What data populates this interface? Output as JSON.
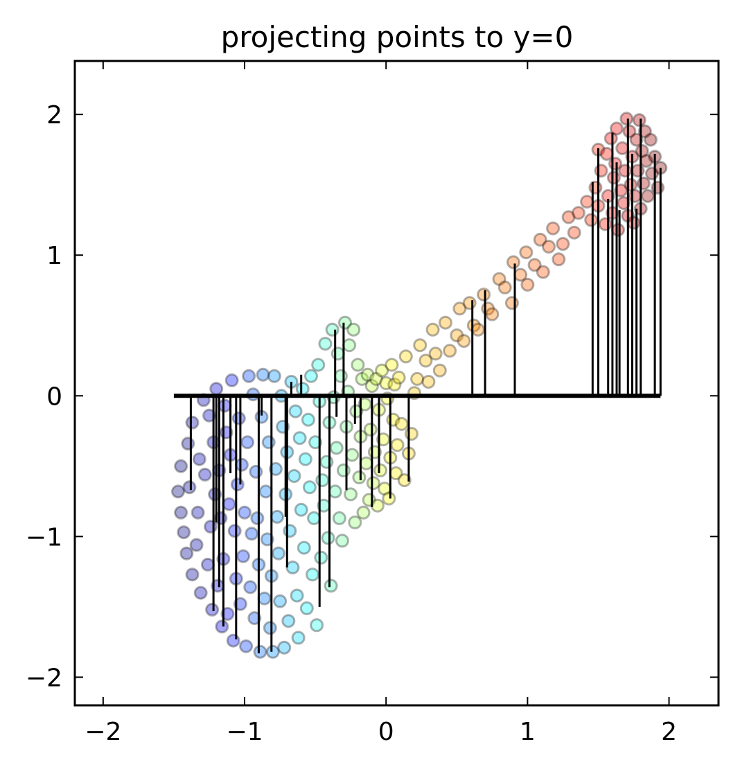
{
  "chart_data": {
    "type": "scatter",
    "title": "projecting points to y=0",
    "xlabel": "",
    "ylabel": "",
    "xlim": [
      -2.2,
      2.35
    ],
    "ylim": [
      -2.2,
      2.38
    ],
    "xticks": [
      -2,
      -1,
      0,
      1,
      2
    ],
    "yticks": [
      -2,
      -1,
      0,
      1,
      2
    ],
    "xtick_labels": [
      "−2",
      "−1",
      "0",
      "1",
      "2"
    ],
    "ytick_labels": [
      "−2",
      "−1",
      "0",
      "1",
      "2"
    ],
    "grid": false,
    "colormap": "jet (red at low t, blue at high t), alpha 0.35",
    "projection_line": {
      "y": 0,
      "x_range": [
        -1.5,
        1.94
      ],
      "color": "#000000"
    },
    "points": [
      [
        -1.47,
        -0.68
      ],
      [
        -1.45,
        -0.83
      ],
      [
        -1.45,
        -0.5
      ],
      [
        -1.43,
        -0.97
      ],
      [
        -1.41,
        -1.12
      ],
      [
        -1.4,
        -0.34
      ],
      [
        -1.39,
        -0.65
      ],
      [
        -1.37,
        -1.27
      ],
      [
        -1.37,
        -0.19
      ],
      [
        -1.34,
        -1.06
      ],
      [
        -1.33,
        -0.83
      ],
      [
        -1.32,
        -0.45
      ],
      [
        -1.31,
        -1.4
      ],
      [
        -1.29,
        -0.03
      ],
      [
        -1.28,
        -0.56
      ],
      [
        -1.26,
        -1.2
      ],
      [
        -1.25,
        -0.14
      ],
      [
        -1.24,
        -0.93
      ],
      [
        -1.23,
        -1.52
      ],
      [
        -1.22,
        -0.33
      ],
      [
        -1.21,
        -0.7
      ],
      [
        -1.2,
        0.05
      ],
      [
        -1.19,
        -1.35
      ],
      [
        -1.18,
        -0.53
      ],
      [
        -1.17,
        -0.87
      ],
      [
        -1.16,
        -1.64
      ],
      [
        -1.15,
        -1.16
      ],
      [
        -1.14,
        -0.07
      ],
      [
        -1.13,
        -0.26
      ],
      [
        -1.12,
        -1.55
      ],
      [
        -1.11,
        -0.77
      ],
      [
        -1.1,
        -0.42
      ],
      [
        -1.09,
        0.11
      ],
      [
        -1.08,
        -1.74
      ],
      [
        -1.07,
        -0.96
      ],
      [
        -1.06,
        -1.3
      ],
      [
        -1.05,
        -0.63
      ],
      [
        -1.04,
        -0.16
      ],
      [
        -1.03,
        -1.48
      ],
      [
        -1.02,
        -0.49
      ],
      [
        -1.01,
        -1.14
      ],
      [
        -1.0,
        -0.83
      ],
      [
        -0.99,
        -1.78
      ],
      [
        -0.98,
        -0.33
      ],
      [
        -0.97,
        0.14
      ],
      [
        -0.96,
        -1.36
      ],
      [
        -0.95,
        -0.98
      ],
      [
        -0.94,
        0.01
      ],
      [
        -0.93,
        -1.58
      ],
      [
        -0.92,
        -0.54
      ],
      [
        -0.91,
        -0.87
      ],
      [
        -0.9,
        -1.2
      ],
      [
        -0.89,
        -1.82
      ],
      [
        -0.88,
        -0.15
      ],
      [
        -0.87,
        0.15
      ],
      [
        -0.86,
        -1.44
      ],
      [
        -0.85,
        -0.68
      ],
      [
        -0.84,
        -1.02
      ],
      [
        -0.83,
        -0.33
      ],
      [
        -0.82,
        -1.65
      ],
      [
        -0.81,
        -1.28
      ],
      [
        -0.8,
        -1.82
      ],
      [
        -0.79,
        0.14
      ],
      [
        -0.78,
        -0.52
      ],
      [
        -0.77,
        -0.86
      ],
      [
        -0.76,
        -1.12
      ],
      [
        -0.75,
        -1.46
      ],
      [
        -0.74,
        0.0
      ],
      [
        -0.73,
        -0.22
      ],
      [
        -0.72,
        -1.79
      ],
      [
        -0.71,
        -0.7
      ],
      [
        -0.7,
        -0.4
      ],
      [
        -0.69,
        -1.6
      ],
      [
        -0.68,
        -0.96
      ],
      [
        -0.67,
        0.1
      ],
      [
        -0.66,
        -1.22
      ],
      [
        -0.65,
        -0.57
      ],
      [
        -0.64,
        -0.11
      ],
      [
        -0.63,
        -1.42
      ],
      [
        -0.62,
        -1.72
      ],
      [
        -0.61,
        -0.3
      ],
      [
        -0.6,
        -0.81
      ],
      [
        -0.59,
        0.05
      ],
      [
        -0.58,
        -1.08
      ],
      [
        -0.57,
        -0.45
      ],
      [
        -0.56,
        -1.51
      ],
      [
        -0.55,
        -0.17
      ],
      [
        -0.54,
        -0.65
      ],
      [
        -0.53,
        0.14
      ],
      [
        -0.52,
        -1.27
      ],
      [
        -0.51,
        -0.87
      ],
      [
        -0.5,
        -0.33
      ],
      [
        -0.49,
        -1.63
      ],
      [
        -0.48,
        0.22
      ],
      [
        -0.47,
        -0.04
      ],
      [
        -0.46,
        -1.15
      ],
      [
        -0.45,
        -0.6
      ],
      [
        -0.44,
        -0.78
      ],
      [
        -0.43,
        0.37
      ],
      [
        -0.42,
        -0.47
      ],
      [
        -0.41,
        -1.01
      ],
      [
        -0.4,
        -0.19
      ],
      [
        -0.39,
        -1.35
      ],
      [
        -0.38,
        0.47
      ],
      [
        -0.37,
        -0.01
      ],
      [
        -0.36,
        -0.68
      ],
      [
        -0.35,
        -0.37
      ],
      [
        -0.34,
        0.3
      ],
      [
        -0.33,
        -0.87
      ],
      [
        -0.32,
        0.14
      ],
      [
        -0.31,
        -1.03
      ],
      [
        -0.3,
        -0.53
      ],
      [
        -0.29,
        0.52
      ],
      [
        -0.28,
        -0.22
      ],
      [
        -0.27,
        0.03
      ],
      [
        -0.26,
        0.36
      ],
      [
        -0.25,
        -0.7
      ],
      [
        -0.24,
        -0.42
      ],
      [
        -0.23,
        0.47
      ],
      [
        -0.22,
        -0.9
      ],
      [
        -0.21,
        -0.11
      ],
      [
        -0.2,
        0.22
      ],
      [
        -0.19,
        -0.58
      ],
      [
        -0.18,
        -0.29
      ],
      [
        -0.17,
        0.12
      ],
      [
        -0.16,
        -0.83
      ],
      [
        -0.15,
        -0.06
      ],
      [
        -0.14,
        -0.48
      ],
      [
        -0.13,
        0.15
      ],
      [
        -0.12,
        -0.74
      ],
      [
        -0.11,
        -0.24
      ],
      [
        -0.1,
        0.07
      ],
      [
        -0.09,
        -0.62
      ],
      [
        -0.08,
        -0.4
      ],
      [
        -0.07,
        0.12
      ],
      [
        -0.06,
        -0.78
      ],
      [
        -0.05,
        -0.1
      ],
      [
        -0.04,
        -0.53
      ],
      [
        -0.03,
        0.18
      ],
      [
        -0.02,
        -0.31
      ],
      [
        -0.01,
        -0.66
      ],
      [
        0.0,
        0.09
      ],
      [
        0.01,
        -0.02
      ],
      [
        0.02,
        -0.73
      ],
      [
        0.03,
        -0.44
      ],
      [
        0.04,
        0.22
      ],
      [
        0.05,
        -0.17
      ],
      [
        0.06,
        0.08
      ],
      [
        0.07,
        -0.55
      ],
      [
        0.08,
        -0.35
      ],
      [
        0.09,
        0.13
      ],
      [
        0.11,
        -0.2
      ],
      [
        0.13,
        -0.6
      ],
      [
        0.14,
        0.28
      ],
      [
        0.16,
        -0.41
      ],
      [
        0.18,
        -0.27
      ],
      [
        0.2,
        0.02
      ],
      [
        0.22,
        0.12
      ],
      [
        0.24,
        0.36
      ],
      [
        0.28,
        0.25
      ],
      [
        0.3,
        0.1
      ],
      [
        0.33,
        0.47
      ],
      [
        0.35,
        0.3
      ],
      [
        0.38,
        0.18
      ],
      [
        0.42,
        0.52
      ],
      [
        0.45,
        0.32
      ],
      [
        0.5,
        0.43
      ],
      [
        0.52,
        0.62
      ],
      [
        0.55,
        0.39
      ],
      [
        0.59,
        0.66
      ],
      [
        0.62,
        0.5
      ],
      [
        0.65,
        0.47
      ],
      [
        0.69,
        0.72
      ],
      [
        0.72,
        0.62
      ],
      [
        0.75,
        0.58
      ],
      [
        0.8,
        0.83
      ],
      [
        0.84,
        0.77
      ],
      [
        0.89,
        0.66
      ],
      [
        0.9,
        0.95
      ],
      [
        0.95,
        0.86
      ],
      [
        0.99,
        1.02
      ],
      [
        1.0,
        0.79
      ],
      [
        1.05,
        0.93
      ],
      [
        1.09,
        1.11
      ],
      [
        1.11,
        0.88
      ],
      [
        1.15,
        1.06
      ],
      [
        1.18,
        1.19
      ],
      [
        1.22,
        0.97
      ],
      [
        1.25,
        1.08
      ],
      [
        1.29,
        1.27
      ],
      [
        1.33,
        1.16
      ],
      [
        1.36,
        1.3
      ],
      [
        1.42,
        1.38
      ],
      [
        1.45,
        1.25
      ],
      [
        1.48,
        1.48
      ],
      [
        1.5,
        1.75
      ],
      [
        1.5,
        1.35
      ],
      [
        1.52,
        1.6
      ],
      [
        1.55,
        1.22
      ],
      [
        1.56,
        1.72
      ],
      [
        1.57,
        1.42
      ],
      [
        1.59,
        1.83
      ],
      [
        1.6,
        1.3
      ],
      [
        1.61,
        1.55
      ],
      [
        1.62,
        1.65
      ],
      [
        1.63,
        1.9
      ],
      [
        1.64,
        1.18
      ],
      [
        1.66,
        1.46
      ],
      [
        1.67,
        1.76
      ],
      [
        1.68,
        1.37
      ],
      [
        1.69,
        1.6
      ],
      [
        1.7,
        1.97
      ],
      [
        1.71,
        1.28
      ],
      [
        1.72,
        1.88
      ],
      [
        1.73,
        1.5
      ],
      [
        1.74,
        1.7
      ],
      [
        1.75,
        1.23
      ],
      [
        1.76,
        1.42
      ],
      [
        1.77,
        1.82
      ],
      [
        1.78,
        1.6
      ],
      [
        1.79,
        1.96
      ],
      [
        1.8,
        1.33
      ],
      [
        1.81,
        1.74
      ],
      [
        1.82,
        1.51
      ],
      [
        1.83,
        1.88
      ],
      [
        1.84,
        1.67
      ],
      [
        1.85,
        1.42
      ],
      [
        1.87,
        1.82
      ],
      [
        1.88,
        1.58
      ],
      [
        1.9,
        1.7
      ],
      [
        1.92,
        1.48
      ],
      [
        1.94,
        1.62
      ]
    ],
    "projected": [
      [
        -1.38,
        -0.67
      ],
      [
        -1.22,
        -1.53
      ],
      [
        -1.2,
        -0.9
      ],
      [
        -1.18,
        -1.36
      ],
      [
        -1.15,
        -1.64
      ],
      [
        -1.1,
        -0.55
      ],
      [
        -1.06,
        -1.73
      ],
      [
        -1.03,
        -0.63
      ],
      [
        -0.9,
        -1.83
      ],
      [
        -0.88,
        -0.14
      ],
      [
        -0.81,
        -1.82
      ],
      [
        -0.71,
        -0.86
      ],
      [
        -0.7,
        -1.22
      ],
      [
        -0.67,
        0.1
      ],
      [
        -0.6,
        0.15
      ],
      [
        -0.47,
        -1.5
      ],
      [
        -0.4,
        -1.36
      ],
      [
        -0.35,
        -0.15
      ],
      [
        -0.36,
        0.47
      ],
      [
        -0.3,
        0.52
      ],
      [
        -0.28,
        -0.67
      ],
      [
        -0.22,
        -0.2
      ],
      [
        -0.18,
        -0.6
      ],
      [
        -0.1,
        -0.79
      ],
      [
        -0.05,
        -0.55
      ],
      [
        0.03,
        -0.73
      ],
      [
        0.16,
        -0.61
      ],
      [
        0.61,
        0.68
      ],
      [
        0.7,
        0.75
      ],
      [
        0.91,
        0.94
      ],
      [
        1.46,
        1.52
      ],
      [
        1.5,
        1.76
      ],
      [
        1.57,
        1.4
      ],
      [
        1.6,
        1.87
      ],
      [
        1.63,
        1.66
      ],
      [
        1.65,
        1.32
      ],
      [
        1.71,
        1.97
      ],
      [
        1.74,
        1.72
      ],
      [
        1.77,
        1.33
      ],
      [
        1.8,
        1.97
      ],
      [
        1.9,
        1.72
      ],
      [
        1.94,
        1.62
      ]
    ]
  }
}
